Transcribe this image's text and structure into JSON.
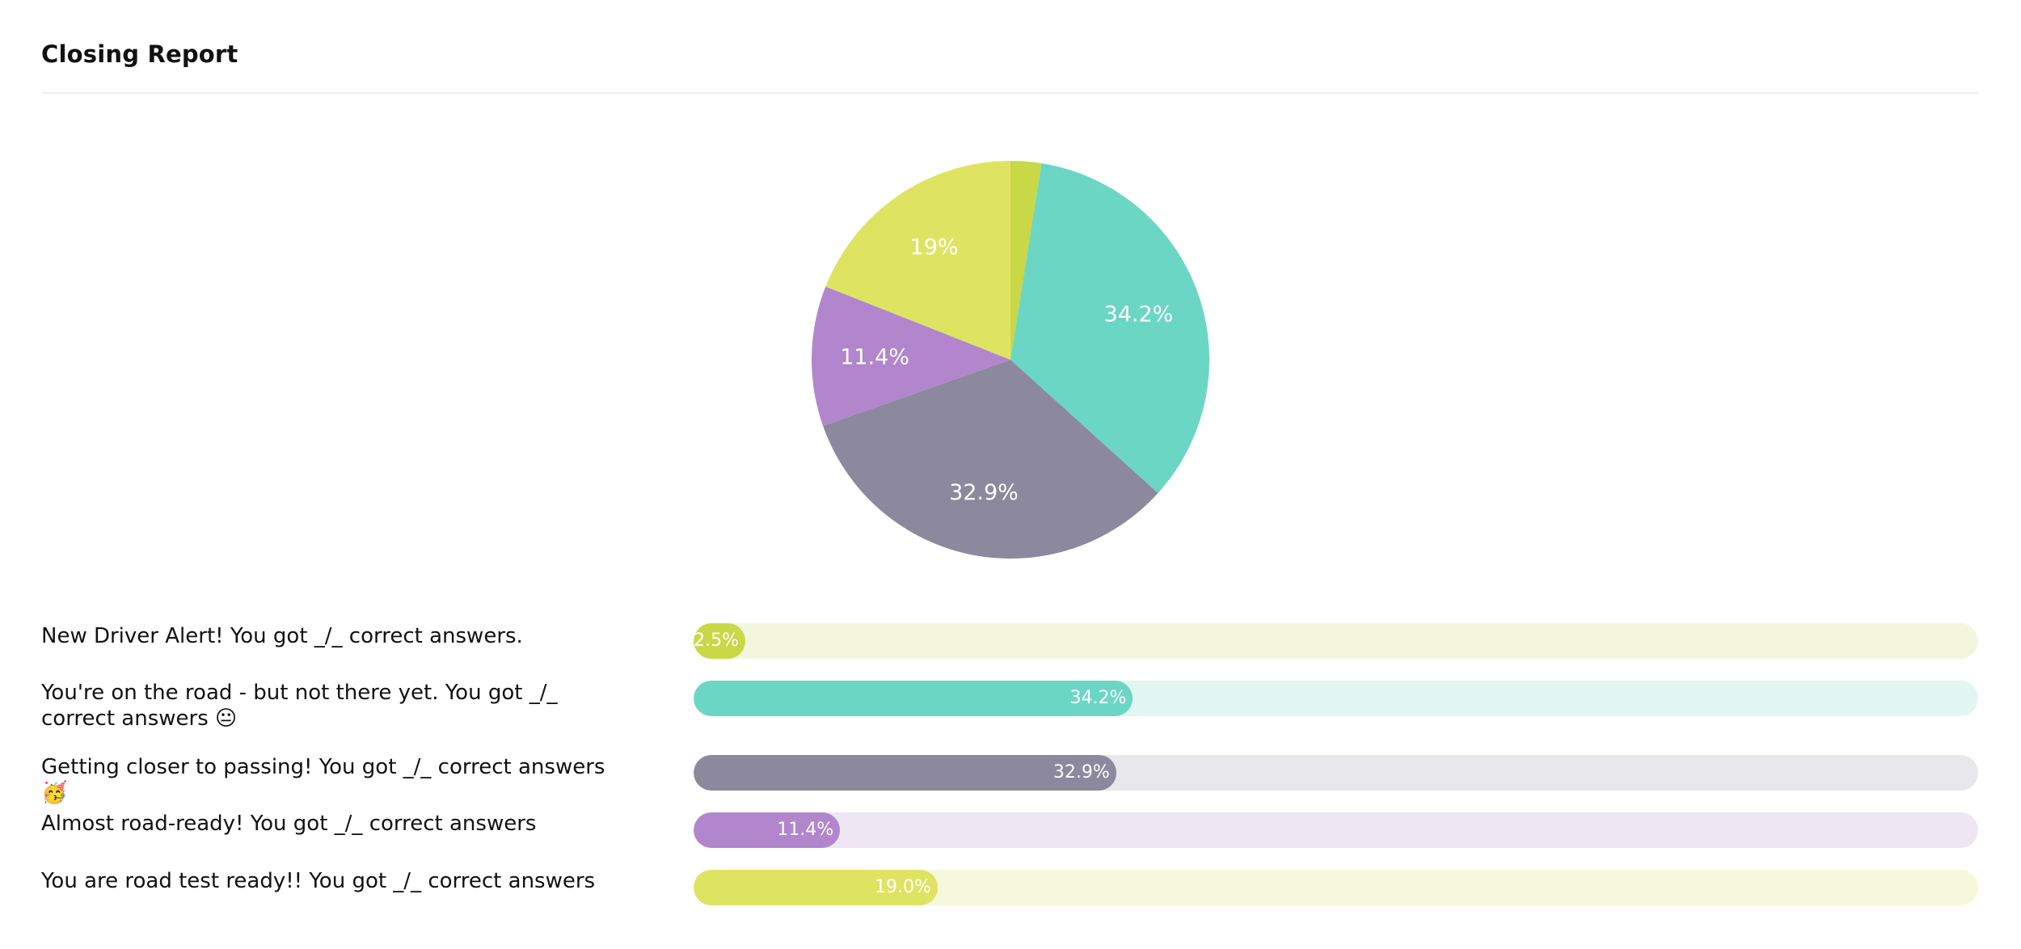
{
  "header": {
    "title": "Closing Report"
  },
  "chart_data": {
    "type": "pie",
    "categories": [
      "New Driver Alert! You got _/_ correct answers.",
      "You're on the road - but not there yet. You got _/_ correct answers 😐",
      "Getting closer to passing! You got _/_ correct answers 🥳",
      "Almost road-ready! You got _/_ correct answers",
      "You are road test ready!! You got _/_ correct answers"
    ],
    "values": [
      2.5,
      34.2,
      32.9,
      11.4,
      19.0
    ],
    "pie_labels": [
      "",
      "34.2%",
      "32.9%",
      "11.4%",
      "19%"
    ],
    "bar_labels": [
      "2.5%",
      "34.2%",
      "32.9%",
      "11.4%",
      "19.0%"
    ],
    "colors": [
      "#c8d846",
      "#6cd6c4",
      "#8c899e",
      "#b286cc",
      "#dee462"
    ],
    "track_colors": [
      "#f3f6dc",
      "#e2f6f2",
      "#e8e7ec",
      "#efe6f4",
      "#f6f8dc"
    ]
  }
}
